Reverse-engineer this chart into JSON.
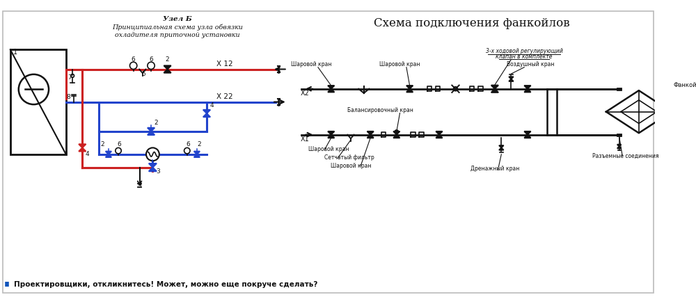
{
  "bg_color": "#ffffff",
  "border_color": "#bbbbbb",
  "title_right": "Схема подключения фанкойлов",
  "title_left_line1": "Узел Б",
  "title_left_line2": "Принципиальная схема узла обвязки",
  "title_left_line3": "охладителя приточной установки",
  "bottom_text": "Проектировщики, откликнитесь! Может, можно еще покруче сделать?",
  "bottom_marker_color": "#1155bb",
  "red_color": "#cc2222",
  "blue_color": "#2244cc",
  "black_color": "#111111",
  "white": "#ffffff",
  "fig_w": 10.0,
  "fig_h": 4.37,
  "dpi": 100
}
